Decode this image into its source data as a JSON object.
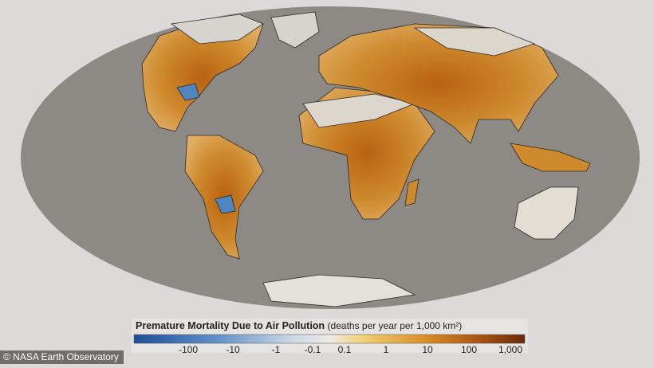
{
  "legend": {
    "title": "Premature Mortality Due to Air Pollution",
    "units": "(deaths per year per 1,000 km²)",
    "ticks": [
      "-100",
      "-10",
      "-1",
      "-0.1",
      "0.1",
      "1",
      "10",
      "100",
      "1,000"
    ]
  },
  "credit": "© NASA Earth Observatory"
}
